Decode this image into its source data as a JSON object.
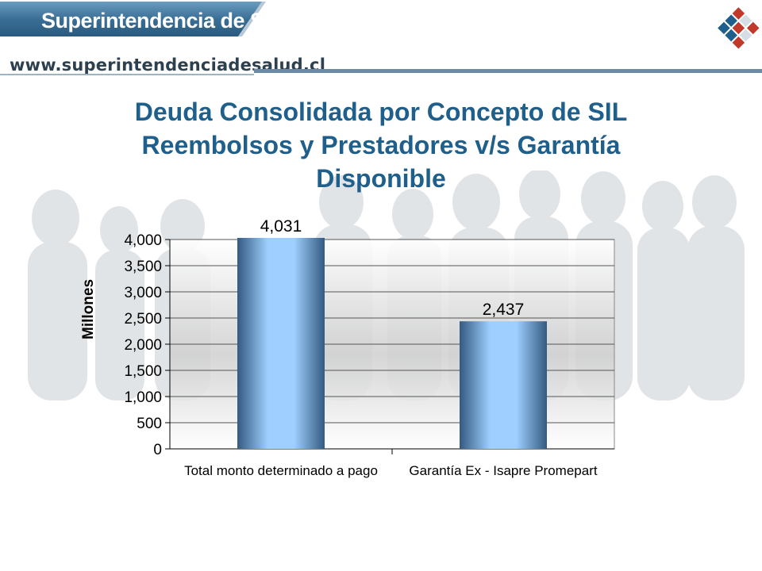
{
  "header": {
    "brand": "Superintendencia de Salud",
    "url": "www.superintendenciadesalud.cl"
  },
  "slide": {
    "title_lines": [
      "Deuda Consolidada por Concepto de SIL",
      "Reembolsos y Prestadores v/s Garantía",
      "Disponible"
    ]
  },
  "colors": {
    "title": "#1f5f8b",
    "bar_light": "#9ecfff",
    "bar_dark": "#345a80",
    "brand_bar": "#3a6f96"
  },
  "icons": {
    "logo": "superintendencia-cube-logo",
    "background": "crowd-photo"
  },
  "chart_data": {
    "type": "bar",
    "categories": [
      "Total monto determinado a pago",
      "Garantía Ex - Isapre Promepart"
    ],
    "values": [
      4031,
      2437
    ],
    "value_labels": [
      "4,031",
      "2,437"
    ],
    "ylabel": "Millones",
    "ylim": [
      0,
      4000
    ],
    "yticks": [
      0,
      500,
      1000,
      1500,
      2000,
      2500,
      3000,
      3500,
      4000
    ],
    "ytick_labels": [
      "0",
      "500",
      "1,000",
      "1,500",
      "2,000",
      "2,500",
      "3,000",
      "3,500",
      "4,000"
    ],
    "grid": true,
    "legend": "none"
  }
}
